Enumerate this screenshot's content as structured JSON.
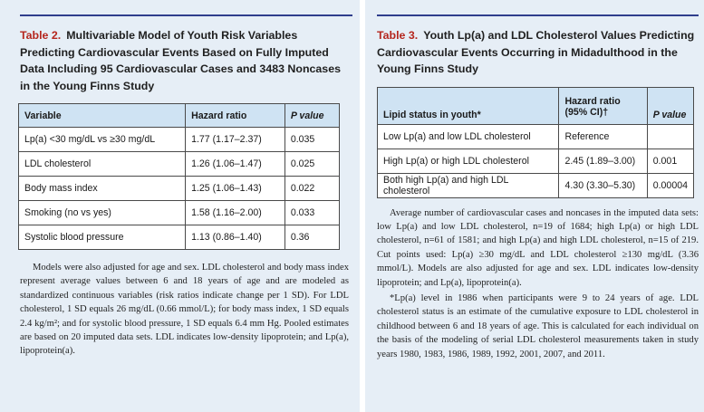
{
  "table2": {
    "number": "Table 2.",
    "title": "Multivariable Model of Youth Risk Variables Predicting Cardiovascular Events Based on Fully Imputed Data Including 95 Cardiovascular Cases and 3483 Noncases in the Young Finns Study",
    "columns": [
      "Variable",
      "Hazard ratio",
      "P value"
    ],
    "rows": [
      [
        "Lp(a) <30 mg/dL vs ≥30 mg/dL",
        "1.77 (1.17–2.37)",
        "0.035"
      ],
      [
        "LDL cholesterol",
        "1.26 (1.06–1.47)",
        "0.025"
      ],
      [
        "Body mass index",
        "1.25 (1.06–1.43)",
        "0.022"
      ],
      [
        "Smoking (no vs yes)",
        "1.58 (1.16–2.00)",
        "0.033"
      ],
      [
        "Systolic blood pressure",
        "1.13 (0.86–1.40)",
        "0.36"
      ]
    ],
    "note": "Models were also adjusted for age and sex. LDL cholesterol and body mass index represent average values between 6 and 18 years of age and are modeled as standardized continuous variables (risk ratios indicate change per 1 SD). For LDL cholesterol, 1 SD equals 26 mg/dL (0.66 mmol/L); for body mass index, 1 SD equals 2.4 kg/m²; and for systolic blood pressure, 1 SD equals 6.4 mm Hg. Pooled estimates are based on 20 imputed data sets. LDL indicates low-density lipoprotein; and Lp(a), lipoprotein(a)."
  },
  "table3": {
    "number": "Table 3.",
    "title": "Youth Lp(a) and LDL Cholesterol Values Predicting Cardiovascular Events Occurring in Midadulthood in the Young Finns Study",
    "columns": [
      "Lipid status in youth*",
      "Hazard ratio (95% CI)†",
      "P value"
    ],
    "rows": [
      [
        "Low Lp(a) and low LDL cholesterol",
        "Reference",
        ""
      ],
      [
        "High Lp(a) or high LDL cholesterol",
        "2.45 (1.89–3.00)",
        "0.001"
      ],
      [
        "Both high Lp(a) and high LDL cholesterol",
        "4.30 (3.30–5.30)",
        "0.00004"
      ]
    ],
    "note1": "Average number of cardiovascular cases and noncases in the imputed data sets: low Lp(a) and low LDL cholesterol, n=19 of 1684; high Lp(a) or high LDL cholesterol, n=61 of 1581; and high Lp(a) and high LDL cholesterol, n=15 of 219. Cut points used: Lp(a) ≥30 mg/dL and LDL cholesterol ≥130 mg/dL (3.36 mmol/L). Models are also adjusted for age and sex. LDL indicates low-density lipoprotein; and Lp(a), lipoprotein(a).",
    "note2": "*Lp(a) level in 1986 when participants were 9 to 24 years of age. LDL cholesterol status is an estimate of the cumulative exposure to LDL cholesterol in childhood between 6 and 18 years of age. This is calculated for each individual on the basis of the modeling of serial LDL cholesterol measurements taken in study years 1980, 1983, 1986, 1989, 1992, 2001, 2007, and 2011."
  },
  "colors": {
    "panel_bg": "#e6eef6",
    "header_bg": "#cfe3f3",
    "table_number": "#b5261e",
    "rule": "#2f3e8c"
  }
}
